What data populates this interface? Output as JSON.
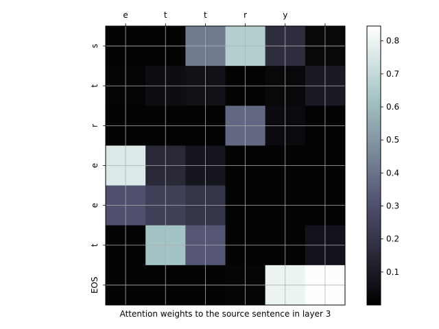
{
  "chart_data": {
    "type": "heatmap",
    "title": "",
    "xlabel": "Attention weights to the source sentence in layer 3",
    "ylabel": "",
    "x_tick_position": "top",
    "source_tokens": [
      "e",
      "t",
      "t",
      "r",
      "y",
      ""
    ],
    "target_tokens": [
      "s",
      "t",
      "r",
      "e",
      "e",
      "t",
      "EOS"
    ],
    "values": [
      [
        0.01,
        0.01,
        0.42,
        0.66,
        0.17,
        0.03
      ],
      [
        0.02,
        0.05,
        0.06,
        0.01,
        0.03,
        0.1
      ],
      [
        0.01,
        0.01,
        0.01,
        0.37,
        0.04,
        0.01
      ],
      [
        0.76,
        0.15,
        0.08,
        0.01,
        0.01,
        0.01
      ],
      [
        0.3,
        0.24,
        0.2,
        0.01,
        0.01,
        0.01
      ],
      [
        0.01,
        0.62,
        0.32,
        0.01,
        0.01,
        0.07
      ],
      [
        0.01,
        0.01,
        0.01,
        0.02,
        0.8,
        0.84
      ]
    ],
    "colormap": "bone",
    "vmin": 0.0,
    "vmax": 0.845,
    "grid": true,
    "colorbar": {
      "location": "right",
      "ticks": [
        "0.1",
        "0.2",
        "0.3",
        "0.4",
        "0.5",
        "0.6",
        "0.7",
        "0.8"
      ],
      "tick_values": [
        0.1,
        0.2,
        0.3,
        0.4,
        0.5,
        0.6,
        0.7,
        0.8
      ]
    }
  }
}
